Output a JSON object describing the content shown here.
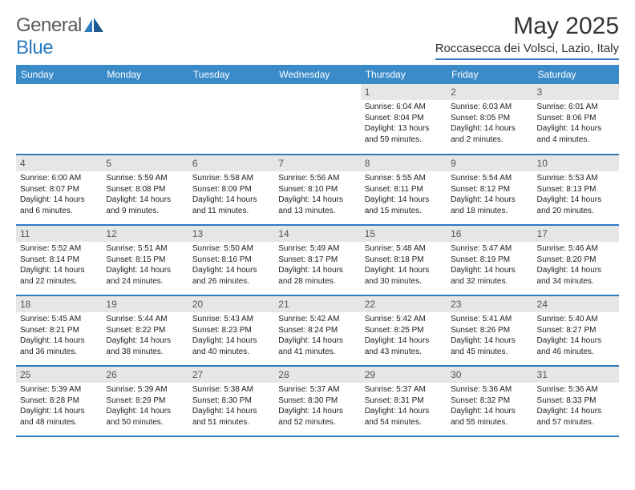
{
  "logo": {
    "text_a": "General",
    "text_b": "Blue"
  },
  "title": "May 2025",
  "location": "Roccasecca dei Volsci, Lazio, Italy",
  "colors": {
    "header_bg": "#3b8bc9",
    "header_text": "#ffffff",
    "rule": "#2b7bbf",
    "daynum_bg": "#e6e6e6",
    "daynum_text": "#555555",
    "body_text": "#222222",
    "logo_gray": "#5a5a5a",
    "logo_blue": "#2b7bbf"
  },
  "weekdays": [
    "Sunday",
    "Monday",
    "Tuesday",
    "Wednesday",
    "Thursday",
    "Friday",
    "Saturday"
  ],
  "weeks": [
    [
      null,
      null,
      null,
      null,
      {
        "d": "1",
        "sr": "6:04 AM",
        "ss": "8:04 PM",
        "dl1": "13 hours",
        "dl2": "and 59 minutes."
      },
      {
        "d": "2",
        "sr": "6:03 AM",
        "ss": "8:05 PM",
        "dl1": "14 hours",
        "dl2": "and 2 minutes."
      },
      {
        "d": "3",
        "sr": "6:01 AM",
        "ss": "8:06 PM",
        "dl1": "14 hours",
        "dl2": "and 4 minutes."
      }
    ],
    [
      {
        "d": "4",
        "sr": "6:00 AM",
        "ss": "8:07 PM",
        "dl1": "14 hours",
        "dl2": "and 6 minutes."
      },
      {
        "d": "5",
        "sr": "5:59 AM",
        "ss": "8:08 PM",
        "dl1": "14 hours",
        "dl2": "and 9 minutes."
      },
      {
        "d": "6",
        "sr": "5:58 AM",
        "ss": "8:09 PM",
        "dl1": "14 hours",
        "dl2": "and 11 minutes."
      },
      {
        "d": "7",
        "sr": "5:56 AM",
        "ss": "8:10 PM",
        "dl1": "14 hours",
        "dl2": "and 13 minutes."
      },
      {
        "d": "8",
        "sr": "5:55 AM",
        "ss": "8:11 PM",
        "dl1": "14 hours",
        "dl2": "and 15 minutes."
      },
      {
        "d": "9",
        "sr": "5:54 AM",
        "ss": "8:12 PM",
        "dl1": "14 hours",
        "dl2": "and 18 minutes."
      },
      {
        "d": "10",
        "sr": "5:53 AM",
        "ss": "8:13 PM",
        "dl1": "14 hours",
        "dl2": "and 20 minutes."
      }
    ],
    [
      {
        "d": "11",
        "sr": "5:52 AM",
        "ss": "8:14 PM",
        "dl1": "14 hours",
        "dl2": "and 22 minutes."
      },
      {
        "d": "12",
        "sr": "5:51 AM",
        "ss": "8:15 PM",
        "dl1": "14 hours",
        "dl2": "and 24 minutes."
      },
      {
        "d": "13",
        "sr": "5:50 AM",
        "ss": "8:16 PM",
        "dl1": "14 hours",
        "dl2": "and 26 minutes."
      },
      {
        "d": "14",
        "sr": "5:49 AM",
        "ss": "8:17 PM",
        "dl1": "14 hours",
        "dl2": "and 28 minutes."
      },
      {
        "d": "15",
        "sr": "5:48 AM",
        "ss": "8:18 PM",
        "dl1": "14 hours",
        "dl2": "and 30 minutes."
      },
      {
        "d": "16",
        "sr": "5:47 AM",
        "ss": "8:19 PM",
        "dl1": "14 hours",
        "dl2": "and 32 minutes."
      },
      {
        "d": "17",
        "sr": "5:46 AM",
        "ss": "8:20 PM",
        "dl1": "14 hours",
        "dl2": "and 34 minutes."
      }
    ],
    [
      {
        "d": "18",
        "sr": "5:45 AM",
        "ss": "8:21 PM",
        "dl1": "14 hours",
        "dl2": "and 36 minutes."
      },
      {
        "d": "19",
        "sr": "5:44 AM",
        "ss": "8:22 PM",
        "dl1": "14 hours",
        "dl2": "and 38 minutes."
      },
      {
        "d": "20",
        "sr": "5:43 AM",
        "ss": "8:23 PM",
        "dl1": "14 hours",
        "dl2": "and 40 minutes."
      },
      {
        "d": "21",
        "sr": "5:42 AM",
        "ss": "8:24 PM",
        "dl1": "14 hours",
        "dl2": "and 41 minutes."
      },
      {
        "d": "22",
        "sr": "5:42 AM",
        "ss": "8:25 PM",
        "dl1": "14 hours",
        "dl2": "and 43 minutes."
      },
      {
        "d": "23",
        "sr": "5:41 AM",
        "ss": "8:26 PM",
        "dl1": "14 hours",
        "dl2": "and 45 minutes."
      },
      {
        "d": "24",
        "sr": "5:40 AM",
        "ss": "8:27 PM",
        "dl1": "14 hours",
        "dl2": "and 46 minutes."
      }
    ],
    [
      {
        "d": "25",
        "sr": "5:39 AM",
        "ss": "8:28 PM",
        "dl1": "14 hours",
        "dl2": "and 48 minutes."
      },
      {
        "d": "26",
        "sr": "5:39 AM",
        "ss": "8:29 PM",
        "dl1": "14 hours",
        "dl2": "and 50 minutes."
      },
      {
        "d": "27",
        "sr": "5:38 AM",
        "ss": "8:30 PM",
        "dl1": "14 hours",
        "dl2": "and 51 minutes."
      },
      {
        "d": "28",
        "sr": "5:37 AM",
        "ss": "8:30 PM",
        "dl1": "14 hours",
        "dl2": "and 52 minutes."
      },
      {
        "d": "29",
        "sr": "5:37 AM",
        "ss": "8:31 PM",
        "dl1": "14 hours",
        "dl2": "and 54 minutes."
      },
      {
        "d": "30",
        "sr": "5:36 AM",
        "ss": "8:32 PM",
        "dl1": "14 hours",
        "dl2": "and 55 minutes."
      },
      {
        "d": "31",
        "sr": "5:36 AM",
        "ss": "8:33 PM",
        "dl1": "14 hours",
        "dl2": "and 57 minutes."
      }
    ]
  ],
  "labels": {
    "sunrise": "Sunrise: ",
    "sunset": "Sunset: ",
    "daylight": "Daylight: "
  }
}
